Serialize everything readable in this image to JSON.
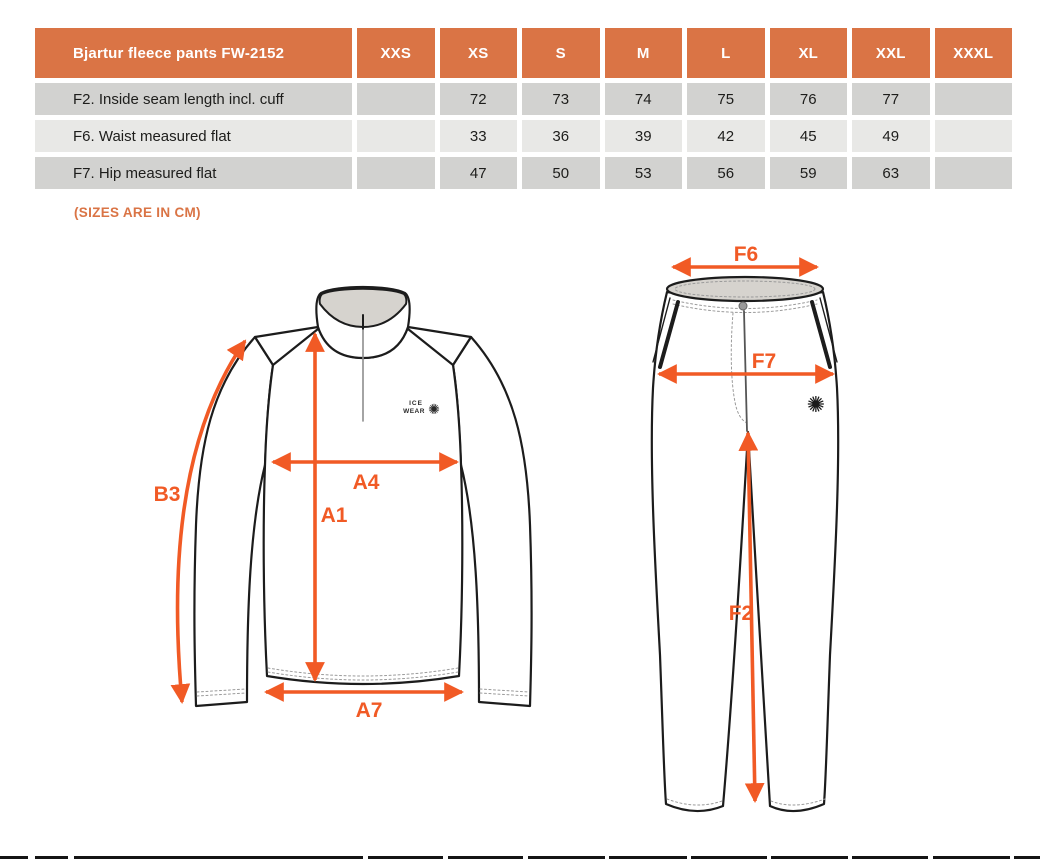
{
  "size_table": {
    "title": "Bjartur fleece pants FW-2152",
    "columns": [
      "XXS",
      "XS",
      "S",
      "M",
      "L",
      "XL",
      "XXL",
      "XXXL"
    ],
    "rows": [
      {
        "label": "F2. Inside seam length incl. cuff",
        "values": [
          "",
          "72",
          "73",
          "74",
          "75",
          "76",
          "77",
          ""
        ]
      },
      {
        "label": "F6. Waist measured flat",
        "values": [
          "",
          "33",
          "36",
          "39",
          "42",
          "45",
          "49",
          ""
        ]
      },
      {
        "label": "F7. Hip measured flat",
        "values": [
          "",
          "47",
          "50",
          "53",
          "56",
          "59",
          "63",
          ""
        ]
      }
    ],
    "unit_note": "(SIZES ARE IN CM)"
  },
  "measurement_diagram": {
    "fleece_labels": {
      "B3": "B3",
      "A4": "A4",
      "A1": "A1",
      "A7": "A7"
    },
    "pants_labels": {
      "F6": "F6",
      "F7": "F7",
      "F2": "F2"
    },
    "brand_logo": {
      "line1": "ICE",
      "line2": "WEAR",
      "snowflake_glyph": "✺"
    }
  },
  "colors": {
    "header_orange": "#DA7445",
    "arrow_orange": "#F15A25",
    "row_dark": "#D2D2D0",
    "row_light": "#E8E8E6",
    "line_dark": "#1C1C1C",
    "inner_gray": "#D6D3CE"
  }
}
